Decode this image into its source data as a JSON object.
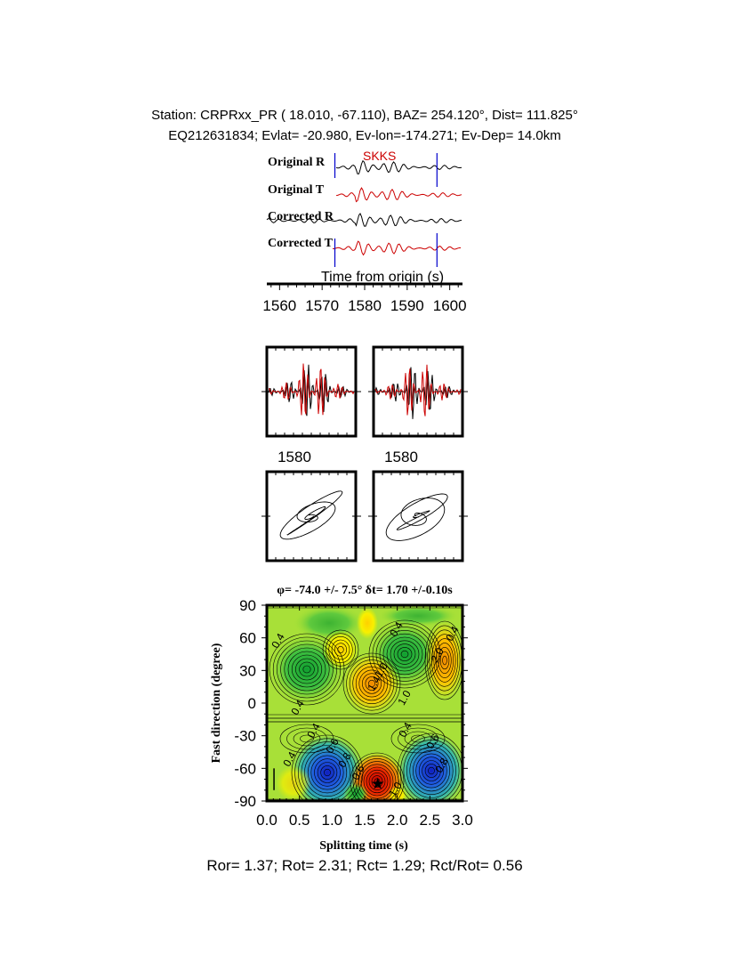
{
  "header": {
    "line1": "Station: CRPRxx_PR (  18.010,  -67.110), BAZ=  254.120°, Dist=  111.825°",
    "line2": "EQ212631834; Evlat= -20.980, Ev-lon=-174.271; Ev-Dep= 14.0km"
  },
  "colors": {
    "radial": "#000000",
    "transverse": "#cc0000",
    "marker": "#0000cc",
    "phase_label": "#cc0000"
  },
  "chart_data": [
    {
      "type": "line",
      "panel": "waveforms",
      "phase_label": "SKKS",
      "xlabel": "Time from origin (s)",
      "xlim": [
        1557,
        1603
      ],
      "xticks": [
        1560,
        1570,
        1580,
        1590,
        1600
      ],
      "window_markers": [
        1573,
        1597
      ],
      "series": [
        {
          "name": "Original R",
          "color": "#000000"
        },
        {
          "name": "Original T",
          "color": "#cc0000"
        },
        {
          "name": "Corrected R",
          "color": "#000000"
        },
        {
          "name": "Corrected T",
          "color": "#cc0000"
        }
      ]
    },
    {
      "type": "line",
      "panel": "particle-waveforms",
      "tick_label": [
        "1580",
        "1580"
      ]
    },
    {
      "type": "scatter",
      "panel": "particle-motion"
    },
    {
      "type": "heatmap",
      "panel": "energy-grid",
      "title": "φ= -74.0 +/- 7.5° δt= 1.70 +/-0.10s",
      "xlabel": "Splitting time (s)",
      "ylabel": "Fast direction (degree)",
      "xlim": [
        0.0,
        3.0
      ],
      "ylim": [
        -90,
        90
      ],
      "xticks": [
        "0.0",
        "0.5",
        "1.0",
        "1.5",
        "2.0",
        "2.5",
        "3.0"
      ],
      "yticks": [
        "90",
        "60",
        "30",
        "0",
        "-30",
        "-60",
        "-90"
      ],
      "best_fit": {
        "dt": 1.7,
        "phi": -74.0
      },
      "contour_labels": [
        "0.4",
        "0.4",
        "0.4",
        "0.4",
        "0.4",
        "0.4",
        "0.4",
        "0.6",
        "0.6",
        "0.6",
        "0.8",
        "0.8",
        "1.0",
        "1.0",
        "1.0",
        "1.4",
        "2.0"
      ]
    }
  ],
  "result": {
    "text": "Ror= 1.37; Rot= 2.31; Rct= 1.29; Rct/Rot= 0.56"
  }
}
